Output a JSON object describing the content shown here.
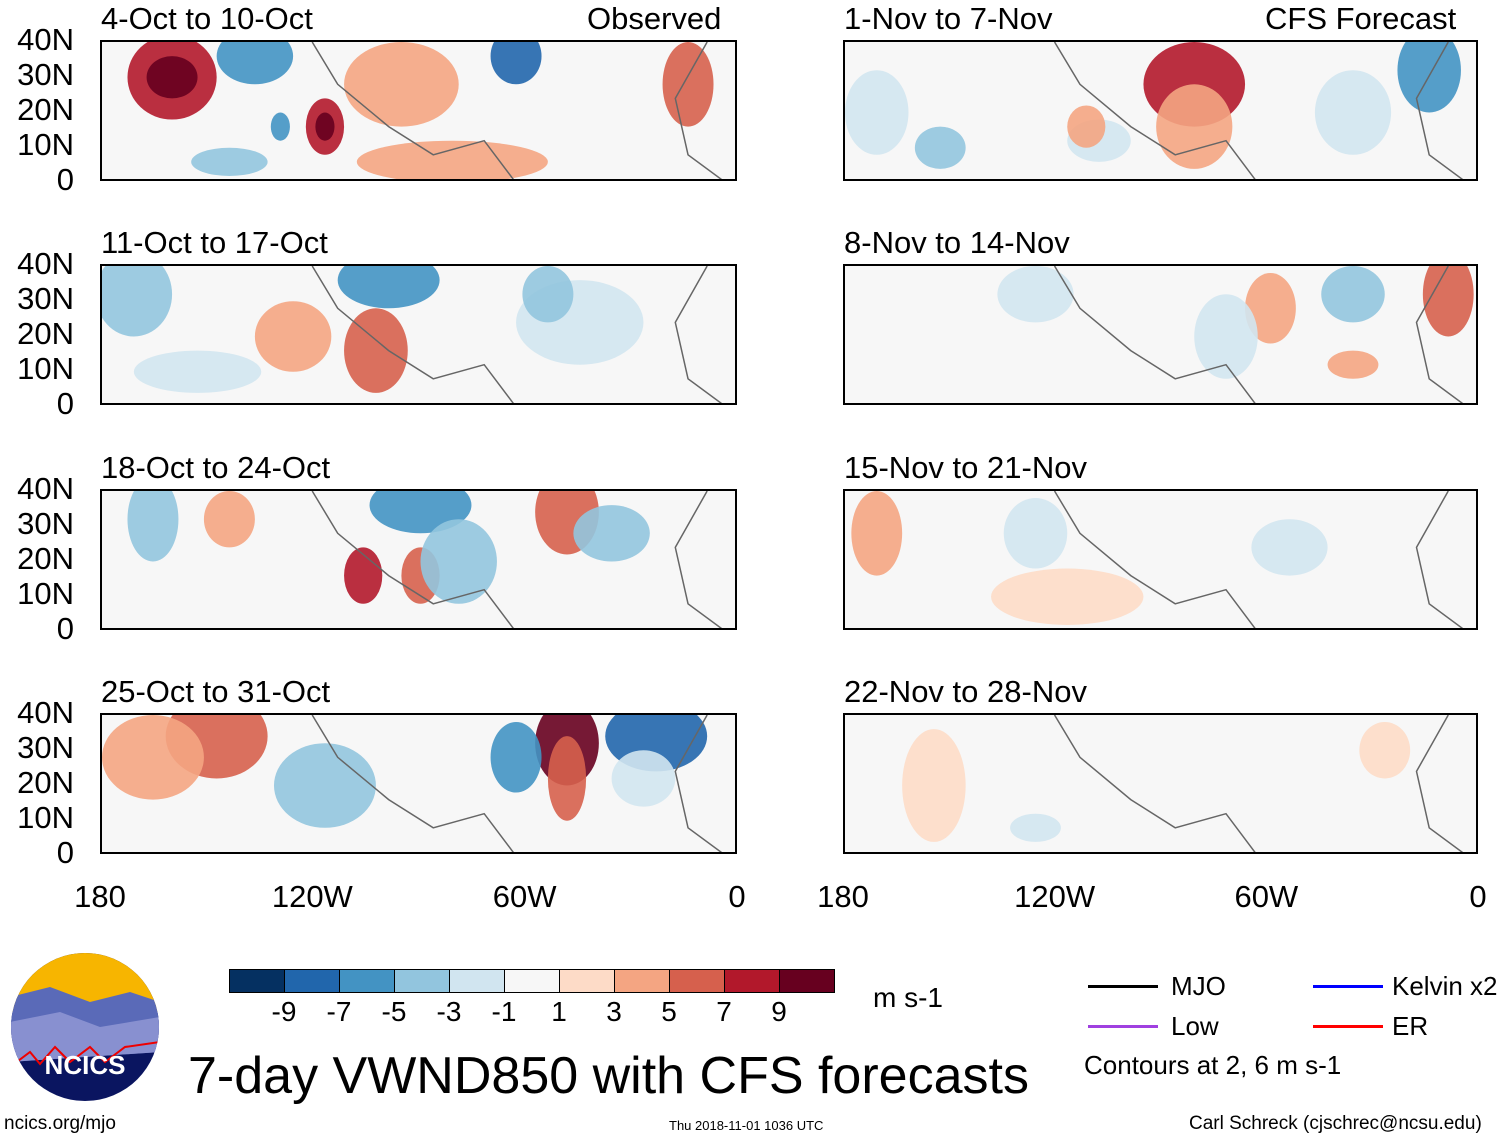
{
  "headers": {
    "observed": "Observed",
    "forecast": "CFS Forecast"
  },
  "observed_panels": [
    "4-Oct to 10-Oct",
    "11-Oct to 17-Oct",
    "18-Oct to 24-Oct",
    "25-Oct to 31-Oct"
  ],
  "forecast_panels": [
    "1-Nov to 7-Nov",
    "8-Nov to 14-Nov",
    "15-Nov to 21-Nov",
    "22-Nov to 28-Nov"
  ],
  "lat_labels": [
    "40N",
    "30N",
    "20N",
    "10N",
    "0"
  ],
  "lon_labels": [
    "180",
    "120W",
    "60W",
    "0"
  ],
  "colorbar": {
    "colors": [
      "#053061",
      "#2166ac",
      "#4393c3",
      "#92c5de",
      "#d1e5f0",
      "#f7f7f7",
      "#fddbc7",
      "#f4a582",
      "#d6604d",
      "#b2182b",
      "#67001f"
    ],
    "ticks": [
      "-9",
      "-7",
      "-5",
      "-3",
      "-1",
      "1",
      "3",
      "5",
      "7",
      "9"
    ],
    "units": "m s-1"
  },
  "legend": {
    "items": [
      {
        "label": "MJO",
        "color": "#000000"
      },
      {
        "label": "Kelvin x2",
        "color": "#0000ff"
      },
      {
        "label": "Low",
        "color": "#a040e0"
      },
      {
        "label": "ER",
        "color": "#ff0000"
      }
    ],
    "note": "Contours at 2, 6 m s-1"
  },
  "title": "7-day VWND850 with CFS forecasts",
  "logo_text": "NCICS",
  "footer": {
    "left": "ncics.org/mjo",
    "center": "Thu 2018-11-01 1036 UTC",
    "right": "Carl Schreck (cjschrec@ncsu.edu)"
  }
}
